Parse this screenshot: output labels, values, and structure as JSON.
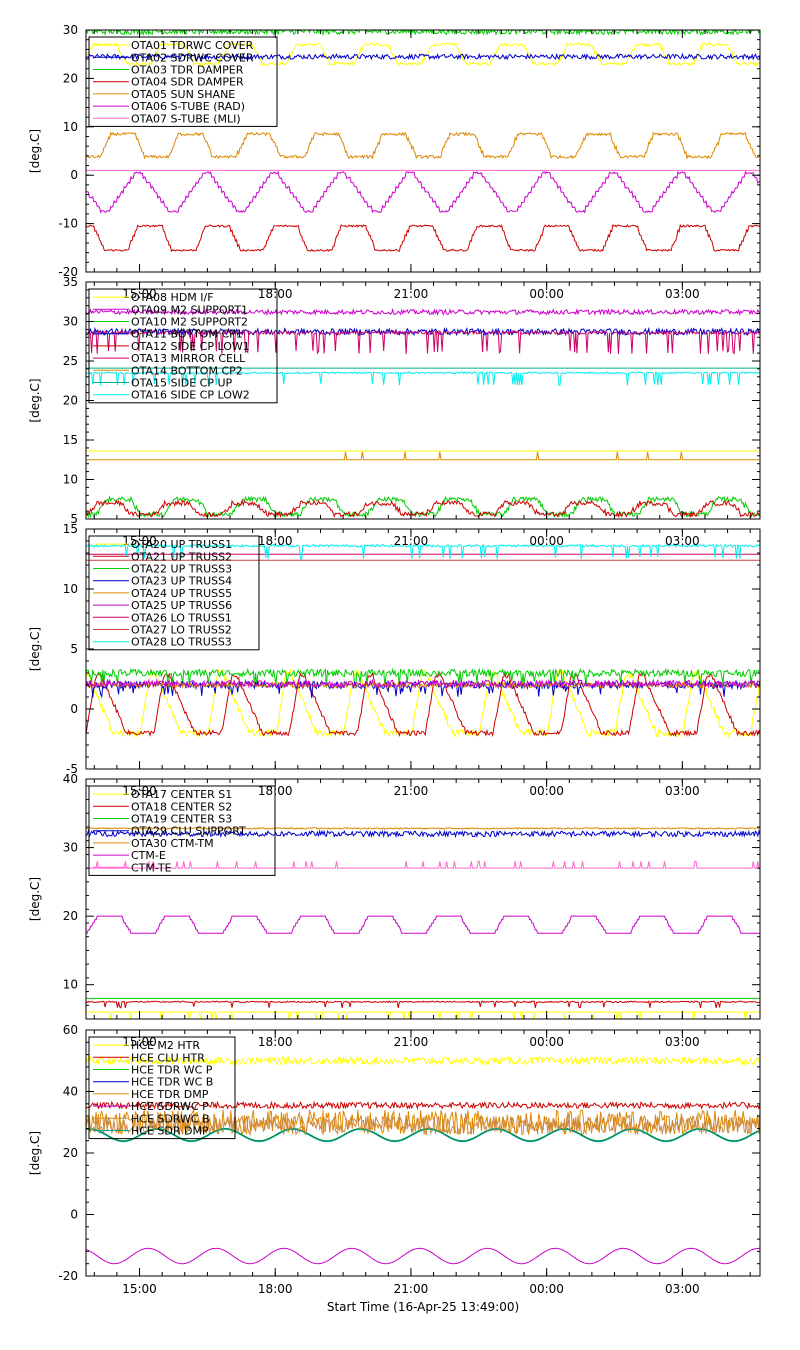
{
  "time_axis": {
    "start_label": "Start Time (16-Apr-25 13:49:00)",
    "range_hours": [
      13.8167,
      28.7167
    ],
    "tick_hours": [
      15,
      18,
      21,
      24,
      27
    ],
    "tick_labels": [
      "15:00",
      "18:00",
      "21:00",
      "00:00",
      "03:00"
    ],
    "minor_tick_step_hours": 0.5
  },
  "chart_data": [
    {
      "type": "line",
      "ylabel": "[deg.C]",
      "ylim": [
        -20,
        30
      ],
      "yticks": [
        -20,
        -10,
        0,
        10,
        20,
        30
      ],
      "y_minor_step": 2,
      "show_time_labels": false,
      "legend_placement": "top-left",
      "series": [
        {
          "name": "OTA01 TDRWC COVER",
          "color": "#ffff00",
          "shape": "trap",
          "min": 23,
          "max": 27,
          "period": 1.5,
          "phase": 0.6,
          "noise": 0.3,
          "spikes": 0
        },
        {
          "name": "OTA02 SDRWC COVER",
          "color": "#0000cc",
          "shape": "flat",
          "min": 24.5,
          "max": 24.5,
          "noise": 0.5,
          "spikes": 0
        },
        {
          "name": "OTA03 TDR DAMPER",
          "color": "#00cc00",
          "shape": "flat",
          "min": 29.7,
          "max": 29.7,
          "noise": 0.6,
          "spikes": 0
        },
        {
          "name": "OTA04 SDR DAMPER",
          "color": "#cc0000",
          "shape": "trap",
          "min": -15.5,
          "max": -10.5,
          "period": 1.5,
          "phase": 1.1,
          "noise": 0.2,
          "spikes": 0
        },
        {
          "name": "OTA05 SUN SHANE",
          "color": "#dd8800",
          "shape": "trap",
          "min": 3.8,
          "max": 8.5,
          "period": 1.5,
          "phase": 0.2,
          "noise": 0.3,
          "spikes": 0
        },
        {
          "name": "OTA06 S-TUBE (RAD)",
          "color": "#cc00cc",
          "shape": "vee",
          "min": -7.5,
          "max": 0.5,
          "period": 1.5,
          "phase": 0.4,
          "noise": 0.2,
          "spikes": 0
        },
        {
          "name": "OTA07 S-TUBE (MLI)",
          "color": "#ff66cc",
          "shape": "flat",
          "min": 1,
          "max": 1,
          "noise": 0,
          "spikes": 0
        }
      ]
    },
    {
      "type": "line",
      "ylabel": "[deg.C]",
      "ylim": [
        5,
        35
      ],
      "yticks": [
        5,
        10,
        15,
        20,
        25,
        30,
        35
      ],
      "y_minor_step": 1,
      "show_time_labels": true,
      "legend_placement": "top-left",
      "series": [
        {
          "name": "OTA08 HDM I/F",
          "color": "#ffff00",
          "shape": "flat",
          "min": 13.6,
          "max": 13.6,
          "noise": 0,
          "spikes": 0
        },
        {
          "name": "OTA09 M2 SUPPORT1",
          "color": "#cc00cc",
          "shape": "flat",
          "min": 31.2,
          "max": 31.2,
          "noise": 0.3,
          "spikes": 0
        },
        {
          "name": "OTA10 M2 SUPPORT2",
          "color": "#00cc00",
          "shape": "trap",
          "min": 5.6,
          "max": 7.5,
          "period": 1.5,
          "phase": 0.3,
          "noise": 0.3,
          "spikes": 0
        },
        {
          "name": "OTA11 BOTTOM CP1",
          "color": "#0000cc",
          "shape": "flat",
          "min": 28.7,
          "max": 28.7,
          "noise": 0.4,
          "spikes": 0
        },
        {
          "name": "OTA12 SIDE CP LOW1",
          "color": "#cc0000",
          "shape": "trap",
          "min": 5.6,
          "max": 7,
          "period": 1.5,
          "phase": 0.5,
          "noise": 0.3,
          "spikes": 0
        },
        {
          "name": "OTA13 MIRROR CELL",
          "color": "#cc0066",
          "shape": "flat",
          "min": 28.6,
          "max": 28.6,
          "noise": 0.2,
          "spikes": 60,
          "spike_depth": -2.5
        },
        {
          "name": "OTA14 BOTTOM CP2",
          "color": "#dd8800",
          "shape": "flat",
          "min": 12.5,
          "max": 12.5,
          "noise": 0,
          "spikes": 8,
          "spike_depth": 1
        },
        {
          "name": "OTA15 SIDE CP UP",
          "color": "#00aa88",
          "shape": "flat",
          "min": 24.1,
          "max": 24.1,
          "noise": 0,
          "spikes": 0
        },
        {
          "name": "OTA16 SIDE CP LOW2",
          "color": "#00eeee",
          "shape": "flat",
          "min": 23.5,
          "max": 23.5,
          "noise": 0.1,
          "spikes": 40,
          "spike_depth": -1.5
        }
      ]
    },
    {
      "type": "line",
      "ylabel": "[deg.C]",
      "ylim": [
        -5,
        15
      ],
      "yticks": [
        -5,
        0,
        5,
        10,
        15
      ],
      "y_minor_step": 1,
      "show_time_labels": true,
      "legend_placement": "top-left",
      "series": [
        {
          "name": "OTA20 UP TRUSS1",
          "color": "#ffff00",
          "shape": "saw",
          "min": -2,
          "max": 3,
          "period": 1.5,
          "phase": 0.9,
          "noise": 0.3,
          "spikes": 0
        },
        {
          "name": "OTA21 UP TRUSS2",
          "color": "#cc0000",
          "shape": "saw",
          "min": -2,
          "max": 2.8,
          "period": 1.5,
          "phase": 0.6,
          "noise": 0.2,
          "spikes": 0
        },
        {
          "name": "OTA22 UP TRUSS3",
          "color": "#00cc00",
          "shape": "flat",
          "min": 3,
          "max": 3,
          "noise": 0.3,
          "spikes": 40,
          "spike_depth": -1
        },
        {
          "name": "OTA23 UP TRUSS4",
          "color": "#0000cc",
          "shape": "flat",
          "min": 2,
          "max": 2,
          "noise": 0.3,
          "spikes": 40,
          "spike_depth": -0.8
        },
        {
          "name": "OTA24 UP TRUSS5",
          "color": "#dd8800",
          "shape": "flat",
          "min": 2,
          "max": 2,
          "noise": 0.2,
          "spikes": 0
        },
        {
          "name": "OTA25 UP TRUSS6",
          "color": "#cc00cc",
          "shape": "flat",
          "min": 2.1,
          "max": 2.1,
          "noise": 0.3,
          "spikes": 0
        },
        {
          "name": "OTA26 LO TRUSS1",
          "color": "#cc0066",
          "shape": "flat",
          "min": 12.9,
          "max": 12.9,
          "noise": 0,
          "spikes": 0
        },
        {
          "name": "OTA27 LO TRUSS2",
          "color": "#cc4444",
          "shape": "flat",
          "min": 12.4,
          "max": 12.4,
          "noise": 0,
          "spikes": 0
        },
        {
          "name": "OTA28 LO TRUSS3",
          "color": "#00eeee",
          "shape": "flat",
          "min": 13.6,
          "max": 13.6,
          "noise": 0.1,
          "spikes": 30,
          "spike_depth": -1
        }
      ]
    },
    {
      "type": "line",
      "ylabel": "[deg.C]",
      "ylim": [
        5,
        40
      ],
      "yticks": [
        10,
        20,
        30,
        40
      ],
      "y_minor_step": 2,
      "show_time_labels": true,
      "legend_placement": "top-left",
      "series": [
        {
          "name": "OTA17 CENTER S1",
          "color": "#ffff00",
          "shape": "flat",
          "min": 6,
          "max": 6,
          "noise": 0,
          "spikes": 30,
          "spike_depth": -1.2
        },
        {
          "name": "OTA18 CENTER S2",
          "color": "#cc0000",
          "shape": "flat",
          "min": 7.5,
          "max": 7.5,
          "noise": 0.1,
          "spikes": 25,
          "spike_depth": -0.8
        },
        {
          "name": "OTA19 CENTER S3",
          "color": "#00cc00",
          "shape": "flat",
          "min": 8,
          "max": 8,
          "noise": 0,
          "spikes": 0
        },
        {
          "name": "OTA29 CLU SUPPORT",
          "color": "#0000cc",
          "shape": "flat",
          "min": 32,
          "max": 32,
          "noise": 0.4,
          "spikes": 0
        },
        {
          "name": "OTA30 CTM-TM",
          "color": "#dd8800",
          "shape": "flat",
          "min": 32.8,
          "max": 32.8,
          "noise": 0.1,
          "spikes": 0
        },
        {
          "name": "CTM-E",
          "color": "#cc00cc",
          "shape": "trap",
          "min": 17.5,
          "max": 20,
          "period": 1.5,
          "phase": 0.5,
          "noise": 0,
          "spikes": 0
        },
        {
          "name": "CTM-TE",
          "color": "#ff66cc",
          "shape": "flat",
          "min": 27,
          "max": 27,
          "noise": 0,
          "spikes": 40,
          "spike_depth": 1
        }
      ]
    },
    {
      "type": "line",
      "ylabel": "[deg.C]",
      "ylim": [
        -20,
        60
      ],
      "yticks": [
        -20,
        0,
        20,
        40,
        60
      ],
      "y_minor_step": 4,
      "show_time_labels": true,
      "legend_placement": "top-left",
      "series": [
        {
          "name": "HCE M2 HTR",
          "color": "#ffff00",
          "shape": "flat",
          "min": 50,
          "max": 50,
          "noise": 1.2,
          "spikes": 0
        },
        {
          "name": "HCE CLU HTR",
          "color": "#cc0000",
          "shape": "flat",
          "min": 35.5,
          "max": 35.5,
          "noise": 1,
          "spikes": 0
        },
        {
          "name": "HCE TDR WC P",
          "color": "#00cc00",
          "shape": "sine",
          "min": 24,
          "max": 28,
          "period": 1.5,
          "phase": 0.3,
          "noise": 0,
          "spikes": 0
        },
        {
          "name": "HCE TDR WC B",
          "color": "#0000cc",
          "shape": "sine",
          "min": 23.8,
          "max": 27.8,
          "period": 1.5,
          "phase": 0.3,
          "noise": 0,
          "spikes": 0
        },
        {
          "name": "HCE TDR DMP",
          "color": "#dd8800",
          "shape": "flat",
          "min": 30,
          "max": 30,
          "noise": 4,
          "spikes": 0
        },
        {
          "name": "HCE SDRWC P",
          "color": "#cc00cc",
          "shape": "sine",
          "min": -16,
          "max": -11,
          "period": 1.5,
          "phase": 0.5,
          "noise": 0,
          "spikes": 0
        },
        {
          "name": "HCE SDRWC B",
          "color": "#cc8844",
          "shape": "flat",
          "min": 29,
          "max": 29,
          "noise": 3,
          "spikes": 0
        },
        {
          "name": "HCE SDR DMP",
          "color": "#00aa88",
          "shape": "sine",
          "min": 23.7,
          "max": 27.7,
          "period": 1.5,
          "phase": 0.3,
          "noise": 0,
          "spikes": 0
        }
      ]
    }
  ]
}
